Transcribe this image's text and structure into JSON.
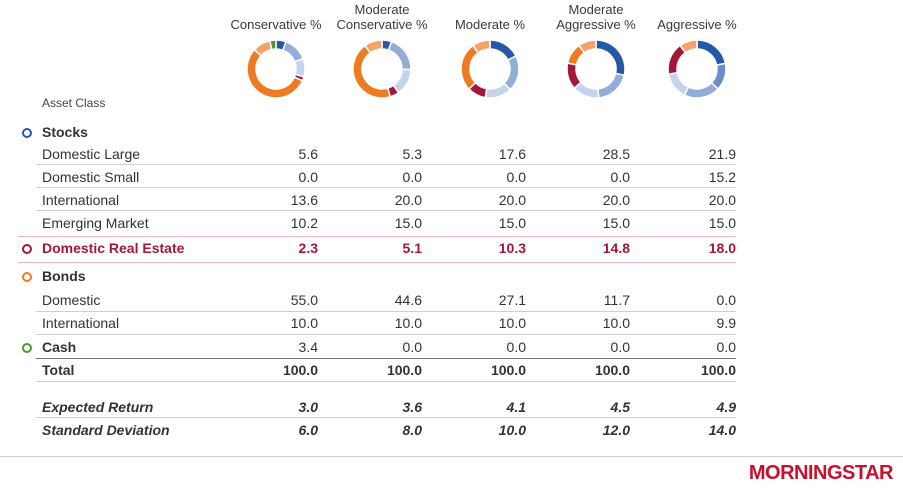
{
  "header": {
    "asset_class": "Asset Class"
  },
  "columns": [
    {
      "line1": "",
      "line2": "Conservative %"
    },
    {
      "line1": "Moderate",
      "line2": "Conservative %"
    },
    {
      "line1": "",
      "line2": "Moderate %"
    },
    {
      "line1": "Moderate",
      "line2": "Aggressive %"
    },
    {
      "line1": "",
      "line2": "Aggressive %"
    }
  ],
  "rows": [
    {
      "label": "Stocks",
      "type": "group",
      "bullet": "#2559a8",
      "values": []
    },
    {
      "label": "Domestic Large",
      "type": "item",
      "values": [
        "5.6",
        "5.3",
        "17.6",
        "28.5",
        "21.9"
      ]
    },
    {
      "label": "Domestic Small",
      "type": "item",
      "values": [
        "0.0",
        "0.0",
        "0.0",
        "0.0",
        "15.2"
      ]
    },
    {
      "label": "International",
      "type": "item",
      "values": [
        "13.6",
        "20.0",
        "20.0",
        "20.0",
        "20.0"
      ]
    },
    {
      "label": "Emerging Market",
      "type": "item",
      "values": [
        "10.2",
        "15.0",
        "15.0",
        "15.0",
        "15.0"
      ]
    },
    {
      "label": "Domestic Real Estate",
      "type": "highlight",
      "bullet": "#a3173a",
      "values": [
        "2.3",
        "5.1",
        "10.3",
        "14.8",
        "18.0"
      ]
    },
    {
      "label": "Bonds",
      "type": "group",
      "bullet": "#ee7b22",
      "values": []
    },
    {
      "label": "Domestic",
      "type": "item",
      "values": [
        "55.0",
        "44.6",
        "27.1",
        "11.7",
        "0.0"
      ]
    },
    {
      "label": "International",
      "type": "item",
      "values": [
        "10.0",
        "10.0",
        "10.0",
        "10.0",
        "9.9"
      ]
    },
    {
      "label": "Cash",
      "type": "groupval",
      "bullet": "#4b9a2f",
      "values": [
        "3.4",
        "0.0",
        "0.0",
        "0.0",
        "0.0"
      ]
    },
    {
      "label": "Total",
      "type": "total",
      "values": [
        "100.0",
        "100.0",
        "100.0",
        "100.0",
        "100.0"
      ]
    },
    {
      "label": "Expected Return",
      "type": "stat",
      "values": [
        "3.0",
        "3.6",
        "4.1",
        "4.5",
        "4.9"
      ]
    },
    {
      "label": "Standard Deviation",
      "type": "stat",
      "values": [
        "6.0",
        "8.0",
        "10.0",
        "12.0",
        "14.0"
      ]
    }
  ],
  "colors": {
    "domestic_large": "#2559a8",
    "domestic_small": "#6b8ec8",
    "international_stocks": "#93acd8",
    "emerging_market": "#c6d3ec",
    "real_estate": "#a3173a",
    "bonds_domestic": "#ee7b22",
    "bonds_international": "#f3a36b",
    "cash": "#4b9a2f",
    "highlight_text": "#a3173a"
  },
  "chart_data": {
    "type": "pie",
    "style": "donut",
    "categories": [
      "Domestic Large",
      "Domestic Small",
      "International",
      "Emerging Market",
      "Domestic Real Estate",
      "Bonds Domestic",
      "Bonds International",
      "Cash"
    ],
    "series": [
      {
        "name": "Conservative %",
        "values": [
          5.6,
          0.0,
          13.6,
          10.2,
          2.3,
          55.0,
          10.0,
          3.4
        ]
      },
      {
        "name": "Moderate Conservative %",
        "values": [
          5.3,
          0.0,
          20.0,
          15.0,
          5.1,
          44.6,
          10.0,
          0.0
        ]
      },
      {
        "name": "Moderate %",
        "values": [
          17.6,
          0.0,
          20.0,
          15.0,
          10.3,
          27.1,
          10.0,
          0.0
        ]
      },
      {
        "name": "Moderate Aggressive %",
        "values": [
          28.5,
          0.0,
          20.0,
          15.0,
          14.8,
          11.7,
          10.0,
          0.0
        ]
      },
      {
        "name": "Aggressive %",
        "values": [
          21.9,
          15.2,
          20.0,
          15.0,
          18.0,
          0.0,
          9.9,
          0.0
        ]
      }
    ]
  },
  "footer": {
    "logo": "MORNINGSTAR"
  }
}
